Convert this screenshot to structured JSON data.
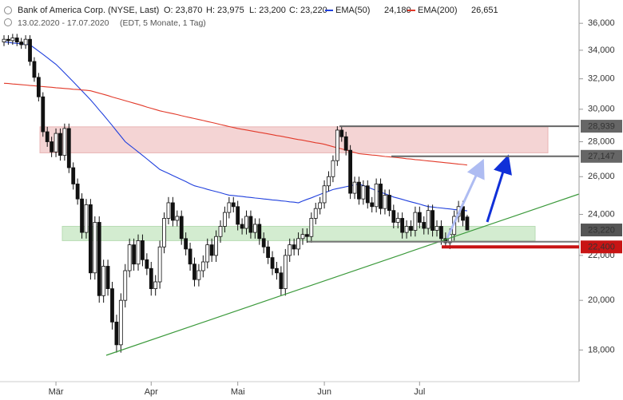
{
  "chart_data": {
    "type": "candlestick",
    "header": {
      "title": "Bank of America Corp. (NYSE, Last)",
      "open": "O: 23,870",
      "high": "H: 23,975",
      "low": "L: 23,200",
      "close": "C: 23,220",
      "range": "13.02.2020 - 17.07.2020",
      "info": "(EDT, 5 Monate, 1 Tag)"
    },
    "categories": [
      null,
      null,
      null,
      null,
      null,
      null,
      null,
      null,
      null,
      null,
      null,
      null,
      "Mär",
      null,
      null,
      null,
      null,
      null,
      null,
      null,
      null,
      null,
      null,
      null,
      null,
      null,
      null,
      null,
      null,
      null,
      null,
      null,
      null,
      null,
      "Apr",
      null,
      null,
      null,
      null,
      null,
      null,
      null,
      null,
      null,
      null,
      null,
      null,
      null,
      null,
      null,
      null,
      null,
      null,
      null,
      "Mai",
      null,
      null,
      null,
      null,
      null,
      null,
      null,
      null,
      null,
      null,
      null,
      null,
      null,
      null,
      null,
      null,
      null,
      null,
      null,
      "Jun",
      null,
      null,
      null,
      null,
      null,
      null,
      null,
      null,
      null,
      null,
      null,
      null,
      null,
      null,
      null,
      null,
      null,
      null,
      null,
      null,
      null,
      "Jul",
      null,
      null,
      null,
      null,
      null,
      null,
      null,
      null,
      null,
      null,
      null
    ],
    "open": [
      34600,
      34800,
      34700,
      34900,
      34600,
      34400,
      34800,
      33200,
      32100,
      30800,
      28600,
      28000,
      27400,
      28500,
      27200,
      28800,
      26500,
      25600,
      24800,
      23100,
      24500,
      21200,
      23600,
      20200,
      21500,
      20500,
      19100,
      18200,
      20000,
      21300,
      22500,
      21600,
      22700,
      21800,
      21400,
      20500,
      20800,
      22400,
      23800,
      24600,
      23700,
      23900,
      22800,
      22300,
      21600,
      20900,
      21300,
      21700,
      22500,
      22000,
      22900,
      23400,
      24100,
      24600,
      24400,
      23500,
      23300,
      23900,
      23100,
      23500,
      22800,
      22400,
      21900,
      21400,
      21200,
      20500,
      22000,
      22500,
      22300,
      22800,
      23000,
      22900,
      23800,
      24300,
      24600,
      25500,
      26000,
      26900,
      28700,
      28300,
      27500,
      25100,
      25700,
      24800,
      25500,
      24600,
      24400,
      25600,
      24300,
      25000,
      24200,
      23600,
      23800,
      23100,
      23400,
      23200,
      24100,
      23600,
      23300,
      24200,
      23200,
      23400,
      22800,
      22600,
      23000,
      23900,
      24400,
      23870
    ],
    "high": [
      35100,
      35100,
      35200,
      35200,
      34900,
      35100,
      35100,
      33500,
      32400,
      31100,
      28900,
      28300,
      28800,
      28800,
      29100,
      29100,
      26800,
      25900,
      25100,
      24800,
      24800,
      23900,
      23900,
      21800,
      21800,
      20800,
      19400,
      20300,
      21600,
      22800,
      22800,
      23000,
      23000,
      22100,
      21700,
      21100,
      22700,
      24100,
      24900,
      24900,
      24200,
      24200,
      23100,
      22600,
      21900,
      21600,
      22000,
      22800,
      22800,
      23200,
      23700,
      24400,
      24900,
      24900,
      24700,
      23800,
      24200,
      24200,
      23800,
      23800,
      23100,
      22700,
      22200,
      21700,
      21500,
      22300,
      22800,
      22800,
      23100,
      23300,
      23300,
      24100,
      24600,
      24900,
      25800,
      26300,
      27200,
      28939,
      28900,
      28600,
      27800,
      26000,
      26000,
      25800,
      25800,
      24900,
      25900,
      25900,
      25300,
      25300,
      24500,
      24100,
      24100,
      23700,
      23700,
      24400,
      24400,
      23900,
      24500,
      24500,
      23700,
      23700,
      23100,
      23300,
      24200,
      24700,
      24700,
      23975
    ],
    "low": [
      34300,
      34400,
      34400,
      34300,
      34100,
      34100,
      32900,
      31800,
      30500,
      28300,
      27700,
      27100,
      27100,
      26900,
      26900,
      26200,
      25300,
      24500,
      22800,
      22800,
      20900,
      20900,
      19900,
      19900,
      20200,
      18800,
      17900,
      17900,
      19700,
      21000,
      21300,
      21300,
      21500,
      21100,
      20200,
      20200,
      20500,
      22100,
      23500,
      23400,
      23400,
      22500,
      22000,
      21300,
      20600,
      20600,
      21000,
      21400,
      21700,
      21700,
      22600,
      23100,
      23800,
      24100,
      23200,
      23000,
      23000,
      22800,
      22800,
      22500,
      22100,
      21600,
      21100,
      20900,
      20200,
      20200,
      21700,
      22000,
      22000,
      22500,
      22600,
      22600,
      23500,
      24000,
      24300,
      25200,
      25700,
      26600,
      28000,
      27200,
      24800,
      24800,
      24500,
      24500,
      24300,
      24100,
      24100,
      24000,
      24000,
      23900,
      23300,
      23300,
      22800,
      22800,
      22900,
      22900,
      23300,
      23000,
      23000,
      22900,
      22900,
      22500,
      22400,
      22300,
      22700,
      23600,
      23400,
      23200
    ],
    "close": [
      34800,
      34700,
      34900,
      34600,
      34400,
      34800,
      33200,
      32100,
      30800,
      28600,
      28000,
      27400,
      28500,
      27200,
      28800,
      26500,
      25600,
      24800,
      23100,
      24500,
      21200,
      23600,
      20200,
      21500,
      20500,
      19100,
      18200,
      20000,
      21300,
      22500,
      21600,
      22700,
      21800,
      21400,
      20500,
      20800,
      22400,
      23800,
      24600,
      23700,
      23900,
      22800,
      22300,
      21600,
      20900,
      21300,
      21700,
      22500,
      22000,
      22900,
      23400,
      24100,
      24600,
      24400,
      23500,
      23300,
      23900,
      23100,
      23500,
      22800,
      22400,
      21900,
      21400,
      21200,
      20500,
      22000,
      22500,
      22300,
      22800,
      23000,
      22900,
      23800,
      24300,
      24600,
      25500,
      26000,
      26900,
      28700,
      28300,
      27500,
      25100,
      25700,
      24800,
      25500,
      24600,
      24400,
      25600,
      24300,
      25000,
      24200,
      23600,
      23800,
      23100,
      23400,
      23200,
      24100,
      23600,
      23300,
      24200,
      23200,
      23400,
      22800,
      22600,
      23000,
      23900,
      24400,
      23700,
      23220
    ],
    "series": [
      {
        "name": "EMA(50)",
        "value_label": "24,180",
        "color": "#2040dd",
        "values": [
          34600,
          34570,
          34530,
          34500,
          34470,
          34430,
          34400,
          34170,
          33930,
          33700,
          33470,
          33230,
          33000,
          32700,
          32400,
          32100,
          31800,
          31500,
          31200,
          30900,
          30600,
          30280,
          29950,
          29630,
          29300,
          28980,
          28650,
          28330,
          28000,
          27800,
          27600,
          27400,
          27200,
          27000,
          26800,
          26600,
          26400,
          26290,
          26180,
          26060,
          25950,
          25840,
          25730,
          25610,
          25500,
          25440,
          25380,
          25310,
          25250,
          25190,
          25130,
          25060,
          25000,
          24980,
          24950,
          24930,
          24900,
          24880,
          24850,
          24830,
          24800,
          24780,
          24750,
          24730,
          24700,
          24680,
          24650,
          24630,
          24600,
          24690,
          24780,
          24860,
          24950,
          25040,
          25130,
          25210,
          25300,
          25350,
          25400,
          25450,
          25500,
          25550,
          25600,
          25510,
          25430,
          25340,
          25250,
          25160,
          25080,
          24990,
          24900,
          24840,
          24780,
          24710,
          24650,
          24590,
          24530,
          24460,
          24400,
          24380,
          24350,
          24330,
          24300,
          24280,
          24250,
          24230,
          24210,
          24180
        ]
      },
      {
        "name": "EMA(200)",
        "value_label": "26,651",
        "color": "#e23a2a",
        "values": [
          31700,
          31680,
          31650,
          31630,
          31600,
          31580,
          31550,
          31530,
          31500,
          31480,
          31450,
          31430,
          31400,
          31380,
          31350,
          31330,
          31300,
          31280,
          31250,
          31230,
          31200,
          31120,
          31040,
          30960,
          30880,
          30790,
          30710,
          30630,
          30550,
          30470,
          30390,
          30310,
          30230,
          30140,
          30060,
          29980,
          29900,
          29840,
          29780,
          29720,
          29660,
          29590,
          29530,
          29470,
          29410,
          29350,
          29290,
          29230,
          29170,
          29110,
          29040,
          28980,
          28920,
          28860,
          28800,
          28750,
          28710,
          28660,
          28610,
          28560,
          28520,
          28470,
          28420,
          28370,
          28330,
          28280,
          28230,
          28180,
          28130,
          28090,
          28040,
          27990,
          27940,
          27900,
          27850,
          27780,
          27710,
          27640,
          27580,
          27510,
          27440,
          27370,
          27300,
          27270,
          27250,
          27220,
          27200,
          27170,
          27140,
          27120,
          27090,
          27070,
          27040,
          27010,
          26990,
          26960,
          26940,
          26910,
          26880,
          26860,
          26830,
          26810,
          26780,
          26760,
          26730,
          26700,
          26680,
          26651
        ]
      }
    ],
    "ylim": [
      17500,
      37000
    ],
    "log_scale": true,
    "yticks": [
      {
        "value": 18000,
        "label": "18,000"
      },
      {
        "value": 20000,
        "label": "20,000"
      },
      {
        "value": 22000,
        "label": "22,000"
      },
      {
        "value": 24000,
        "label": "24,000"
      },
      {
        "value": 26000,
        "label": "26,000"
      },
      {
        "value": 28000,
        "label": "28,000"
      },
      {
        "value": 30000,
        "label": "30,000"
      },
      {
        "value": 32000,
        "label": "32,000"
      },
      {
        "value": 34000,
        "label": "34,000"
      },
      {
        "value": 36000,
        "label": "36,000"
      }
    ],
    "zones": [
      {
        "from": 27350,
        "to": 28900,
        "color": "#f4d4d4"
      },
      {
        "from": 22700,
        "to": 23400,
        "color": "#d3ecd0"
      }
    ],
    "levels": [
      {
        "value": 28939,
        "label": "28,939",
        "color": "#666666"
      },
      {
        "value": 27147,
        "label": "27,147",
        "color": "#666666"
      },
      {
        "value": 22650,
        "color": "#777777"
      },
      {
        "value": 22400,
        "label": "22,400",
        "color": "#c81414"
      },
      {
        "value": 23220,
        "label": "23,220",
        "color": "#555555"
      }
    ]
  }
}
